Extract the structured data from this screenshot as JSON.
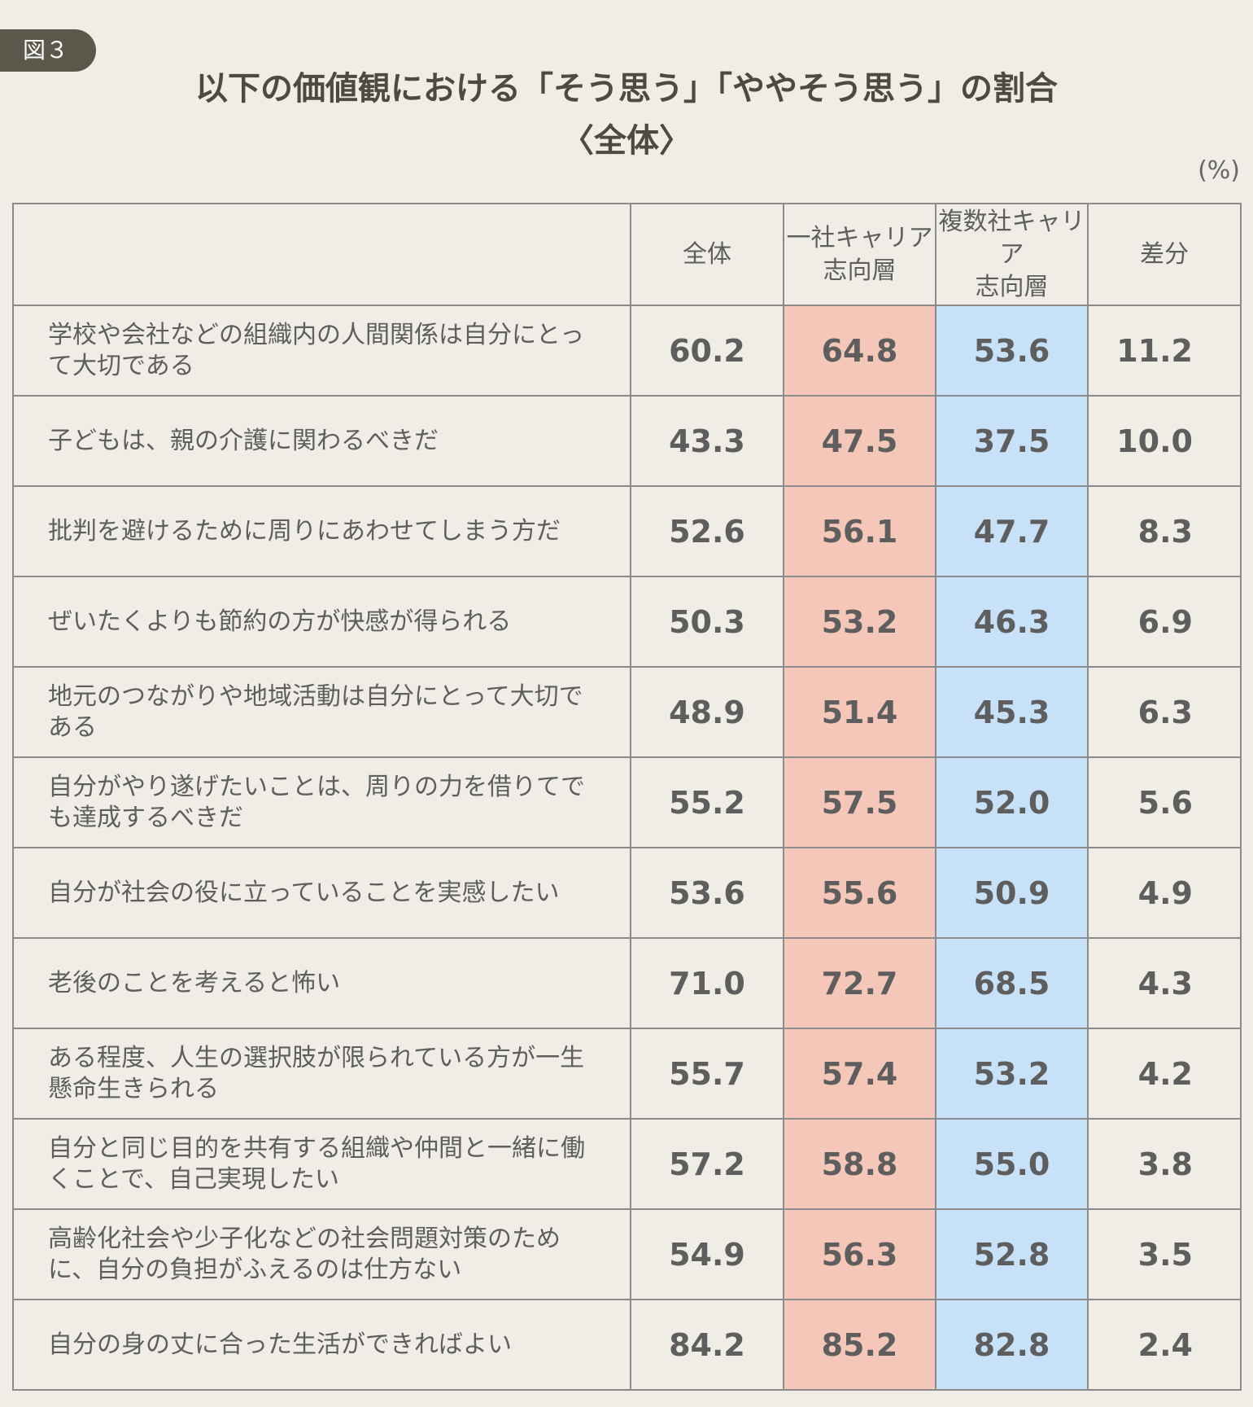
{
  "figure_label": "図３",
  "title_line1": "以下の価値観における「そう思う」「ややそう思う」の割合",
  "title_line2": "〈全体〉",
  "unit": "(%)",
  "colors": {
    "one_company": "#f5c7b9",
    "multi_company": "#c7e2f8",
    "badge": "#5b574b",
    "background": "#efede5"
  },
  "chart_data": {
    "type": "table",
    "title": "以下の価値観における「そう思う」「ややそう思う」の割合",
    "subtitle": "〈全体〉",
    "unit": "(%)",
    "columns": [
      "全体",
      "一社キャリア志向層",
      "複数社キャリア志向層",
      "差分"
    ],
    "column_labels": {
      "total": "全体",
      "one_l1": "一社キャリア",
      "one_l2": "志向層",
      "multi_l1": "複数社キャリア",
      "multi_l2": "志向層",
      "diff": "差分"
    },
    "rows": [
      {
        "label": "学校や会社などの組織内の人間関係は自分にとって大切である",
        "total": "60.2",
        "one": "64.8",
        "multi": "53.6",
        "diff": "11.2"
      },
      {
        "label": "子どもは、親の介護に関わるべきだ",
        "total": "43.3",
        "one": "47.5",
        "multi": "37.5",
        "diff": "10.0"
      },
      {
        "label": "批判を避けるために周りにあわせてしまう方だ",
        "total": "52.6",
        "one": "56.1",
        "multi": "47.7",
        "diff": "8.3"
      },
      {
        "label": "ぜいたくよりも節約の方が快感が得られる",
        "total": "50.3",
        "one": "53.2",
        "multi": "46.3",
        "diff": "6.9"
      },
      {
        "label": "地元のつながりや地域活動は自分にとって大切である",
        "total": "48.9",
        "one": "51.4",
        "multi": "45.3",
        "diff": "6.3"
      },
      {
        "label": "自分がやり遂げたいことは、周りの力を借りてでも達成するべきだ",
        "total": "55.2",
        "one": "57.5",
        "multi": "52.0",
        "diff": "5.6"
      },
      {
        "label": "自分が社会の役に立っていることを実感したい",
        "total": "53.6",
        "one": "55.6",
        "multi": "50.9",
        "diff": "4.9"
      },
      {
        "label": "老後のことを考えると怖い",
        "total": "71.0",
        "one": "72.7",
        "multi": "68.5",
        "diff": "4.3"
      },
      {
        "label": "ある程度、人生の選択肢が限られている方が一生懸命生きられる",
        "total": "55.7",
        "one": "57.4",
        "multi": "53.2",
        "diff": "4.2"
      },
      {
        "label": "自分と同じ目的を共有する組織や仲間と一緒に働くことで、自己実現したい",
        "total": "57.2",
        "one": "58.8",
        "multi": "55.0",
        "diff": "3.8"
      },
      {
        "label": "高齢化社会や少子化などの社会問題対策のために、自分の負担がふえるのは仕方ない",
        "total": "54.9",
        "one": "56.3",
        "multi": "52.8",
        "diff": "3.5"
      },
      {
        "label": "自分の身の丈に合った生活ができればよい",
        "total": "84.2",
        "one": "85.2",
        "multi": "82.8",
        "diff": "2.4"
      }
    ]
  }
}
